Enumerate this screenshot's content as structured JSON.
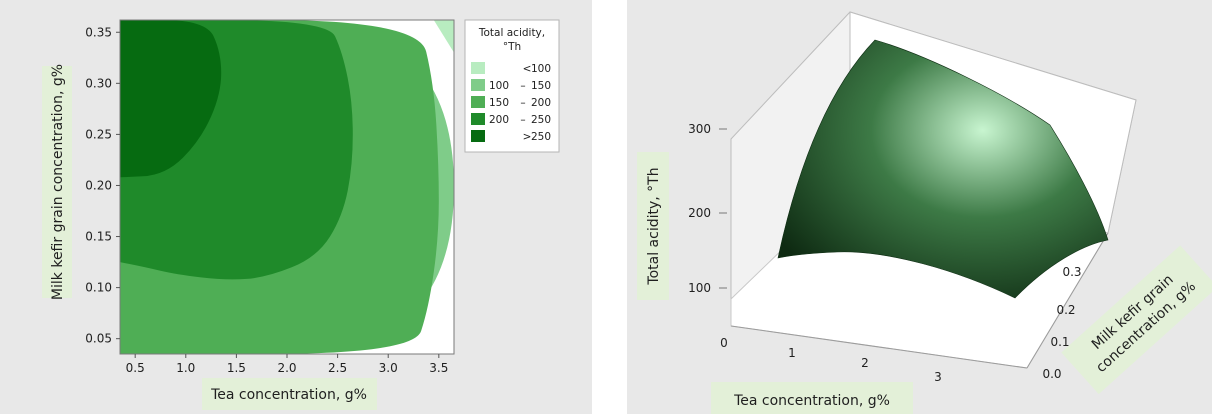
{
  "chart_data": [
    {
      "type": "contour",
      "xlabel": "Tea concentration, g%",
      "ylabel": "Milk kefir grain concentration, g%",
      "xlim": [
        0.35,
        3.65
      ],
      "ylim": [
        0.035,
        0.362
      ],
      "x_ticks": [
        "0.5",
        "1.0",
        "1.5",
        "2.0",
        "2.5",
        "3.0",
        "3.5"
      ],
      "y_ticks": [
        "0.05",
        "0.10",
        "0.15",
        "0.20",
        "0.25",
        "0.30",
        "0.35"
      ],
      "legend": {
        "title_line1": "Total acidity,",
        "title_line2": "°Th",
        "position": "right",
        "items": [
          {
            "op": "<",
            "lo": "",
            "hi": "100",
            "color": "#b8ecc0"
          },
          {
            "op": "–",
            "lo": "100",
            "hi": "150",
            "color": "#7fcc89"
          },
          {
            "op": "–",
            "lo": "150",
            "hi": "200",
            "color": "#4fae55"
          },
          {
            "op": "–",
            "lo": "200",
            "hi": "250",
            "color": "#1f8a2a"
          },
          {
            "op": ">",
            "lo": "",
            "hi": "250",
            "color": "#066b11"
          }
        ]
      },
      "contours": [
        {
          "level": "> 250",
          "points": [
            [
              0.35,
              0.362
            ],
            [
              1.2,
              0.362
            ],
            [
              1.35,
              0.33
            ],
            [
              1.35,
              0.29
            ],
            [
              1.15,
              0.245
            ],
            [
              0.8,
              0.21
            ],
            [
              0.35,
              0.208
            ]
          ]
        },
        {
          "level": "200 – 250",
          "points": [
            [
              0.35,
              0.362
            ],
            [
              2.4,
              0.362
            ],
            [
              2.55,
              0.33
            ],
            [
              2.65,
              0.28
            ],
            [
              2.65,
              0.22
            ],
            [
              2.55,
              0.17
            ],
            [
              2.3,
              0.13
            ],
            [
              1.8,
              0.11
            ],
            [
              1.4,
              0.107
            ],
            [
              0.9,
              0.113
            ],
            [
              0.6,
              0.12
            ],
            [
              0.35,
              0.125
            ]
          ]
        },
        {
          "level": "150 – 200",
          "points": [
            [
              0.35,
              0.362
            ],
            [
              3.3,
              0.362
            ],
            [
              3.45,
              0.3
            ],
            [
              3.5,
              0.22
            ],
            [
              3.5,
              0.15
            ],
            [
              3.4,
              0.08
            ],
            [
              3.25,
              0.035
            ],
            [
              0.35,
              0.035
            ]
          ]
        },
        {
          "level": "100 – 150",
          "points": [
            [
              0.35,
              0.362
            ],
            [
              3.65,
              0.362
            ],
            [
              3.65,
              0.035
            ],
            [
              0.35,
              0.035
            ]
          ]
        },
        {
          "level": "< 100",
          "points": [
            [
              3.45,
              0.362
            ],
            [
              3.65,
              0.362
            ],
            [
              3.65,
              0.33
            ]
          ]
        }
      ]
    },
    {
      "type": "surface",
      "zlabel": "Total acidity, °Th",
      "xlabel": "Tea concentration, g%",
      "ylabel_line1": "Milk kefir grain",
      "ylabel_line2": "concentration, g%",
      "z_ticks": [
        "100",
        "200",
        "300"
      ],
      "x_ticks": [
        "0",
        "1",
        "2",
        "3"
      ],
      "y_ticks": [
        "0.0",
        "0.1",
        "0.2",
        "0.3"
      ],
      "surface_colors": [
        "#0e2a12",
        "#3d7a46",
        "#c8f5d0"
      ]
    }
  ]
}
